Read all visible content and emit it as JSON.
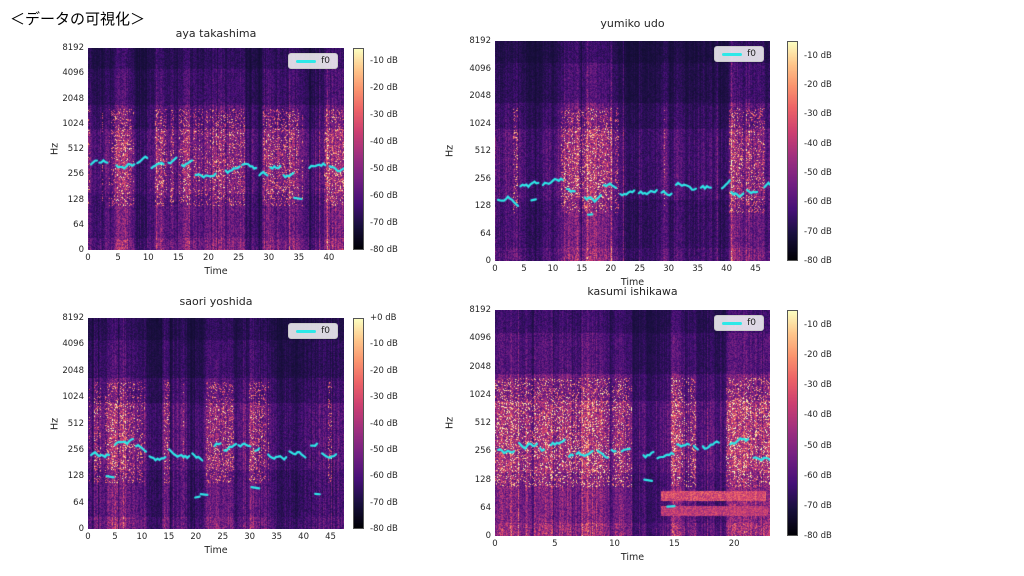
{
  "page": {
    "heading": "＜データの可視化＞"
  },
  "chart_data": [
    {
      "type": "heatmap",
      "title": "aya takashima",
      "xlabel": "Time",
      "ylabel": "Hz",
      "legend_label": "f0",
      "f0_color": "#2ee8e8",
      "y_ticks": [
        0,
        64,
        128,
        256,
        512,
        1024,
        2048,
        4096,
        8192
      ],
      "x_ticks": [
        0,
        5,
        10,
        15,
        20,
        25,
        30,
        35,
        40
      ],
      "x_max": 42.5,
      "colorbar_ticks": [
        "-10 dB",
        "-20 dB",
        "-30 dB",
        "-40 dB",
        "-50 dB",
        "-60 dB",
        "-70 dB",
        "-80 dB"
      ],
      "colorbar_vmax_db": -5,
      "colorbar_vmin_db": -80,
      "f0_center_hz": 300
    },
    {
      "type": "heatmap",
      "title": "yumiko udo",
      "xlabel": "Time",
      "ylabel": "Hz",
      "legend_label": "f0",
      "f0_color": "#2ee8e8",
      "y_ticks": [
        0,
        64,
        128,
        256,
        512,
        1024,
        2048,
        4096,
        8192
      ],
      "x_ticks": [
        0,
        5,
        10,
        15,
        20,
        25,
        30,
        35,
        40,
        45
      ],
      "x_max": 47.5,
      "colorbar_ticks": [
        "-10 dB",
        "-20 dB",
        "-30 dB",
        "-40 dB",
        "-50 dB",
        "-60 dB",
        "-70 dB",
        "-80 dB"
      ],
      "colorbar_vmax_db": -5,
      "colorbar_vmin_db": -80,
      "f0_center_hz": 180
    },
    {
      "type": "heatmap",
      "title": "saori yoshida",
      "xlabel": "Time",
      "ylabel": "Hz",
      "legend_label": "f0",
      "f0_color": "#2ee8e8",
      "y_ticks": [
        0,
        64,
        128,
        256,
        512,
        1024,
        2048,
        4096,
        8192
      ],
      "x_ticks": [
        0,
        5,
        10,
        15,
        20,
        25,
        30,
        35,
        40,
        45
      ],
      "x_max": 47.5,
      "colorbar_ticks": [
        "+0 dB",
        "-10 dB",
        "-20 dB",
        "-30 dB",
        "-40 dB",
        "-50 dB",
        "-60 dB",
        "-70 dB",
        "-80 dB"
      ],
      "colorbar_vmax_db": 0,
      "colorbar_vmin_db": -80,
      "f0_center_hz": 250
    },
    {
      "type": "heatmap",
      "title": "kasumi ishikawa",
      "xlabel": "Time",
      "ylabel": "Hz",
      "legend_label": "f0",
      "f0_color": "#2ee8e8",
      "y_ticks": [
        0,
        64,
        128,
        256,
        512,
        1024,
        2048,
        4096,
        8192
      ],
      "x_ticks": [
        0,
        5,
        10,
        15,
        20
      ],
      "x_max": 23,
      "colorbar_ticks": [
        "-10 dB",
        "-20 dB",
        "-30 dB",
        "-40 dB",
        "-50 dB",
        "-60 dB",
        "-70 dB",
        "-80 dB"
      ],
      "colorbar_vmax_db": -5,
      "colorbar_vmin_db": -80,
      "f0_center_hz": 260
    }
  ]
}
